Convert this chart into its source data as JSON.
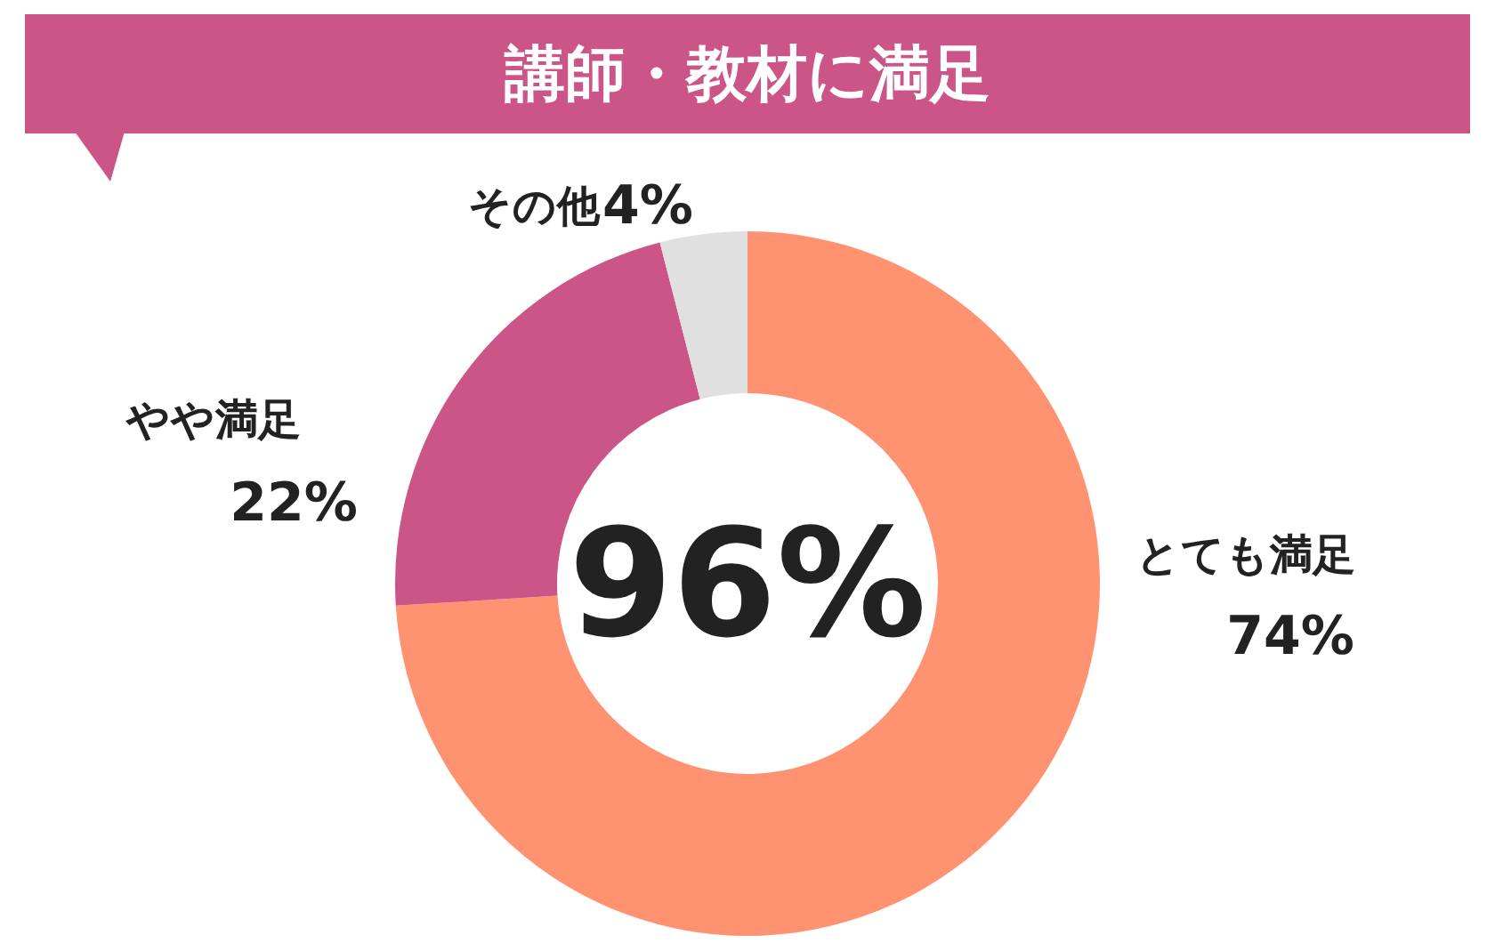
{
  "chart_data": {
    "type": "donut",
    "title": "講師・教材に満足",
    "categories": [
      "とても満足",
      "やや満足",
      "その他"
    ],
    "values": [
      74,
      22,
      4
    ],
    "value_labels": [
      "74%",
      "22%",
      "4%"
    ],
    "colors": [
      "#ff9270",
      "#cc5588",
      "#e0e0e0"
    ],
    "annotations": [
      "96%"
    ]
  }
}
